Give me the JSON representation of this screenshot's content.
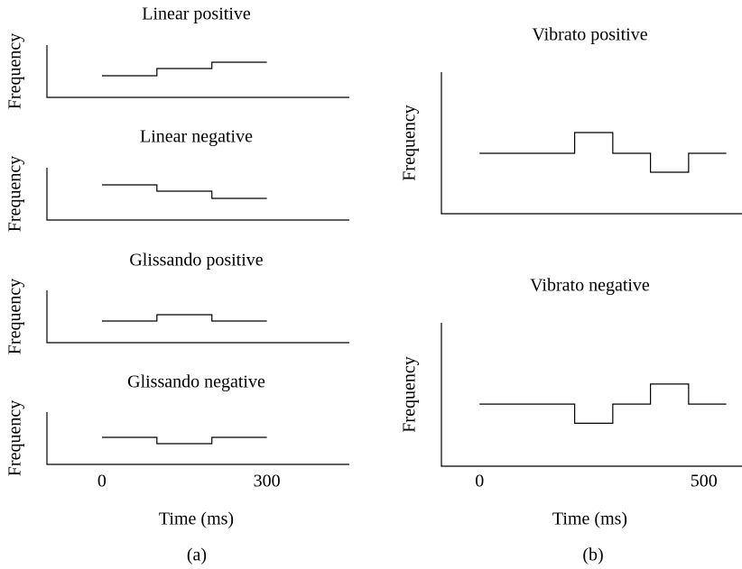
{
  "chart_data": [
    {
      "type": "line",
      "title": "Linear positive",
      "ylabel": "Frequency",
      "color": "#000000",
      "xlim": [
        -100,
        450
      ],
      "ylim": [
        0,
        58
      ],
      "x": [
        0,
        100,
        100,
        200,
        200,
        300
      ],
      "values": [
        24,
        24,
        32,
        32,
        39,
        39
      ]
    },
    {
      "type": "line",
      "title": "Linear negative",
      "ylabel": "Frequency",
      "color": "#000000",
      "xlim": [
        -100,
        450
      ],
      "ylim": [
        0,
        58
      ],
      "x": [
        0,
        100,
        100,
        200,
        200,
        300
      ],
      "values": [
        39,
        39,
        32,
        32,
        24,
        24
      ]
    },
    {
      "type": "line",
      "title": "Glissando positive",
      "ylabel": "Frequency",
      "color": "#000000",
      "xlim": [
        -100,
        450
      ],
      "ylim": [
        0,
        58
      ],
      "x": [
        0,
        100,
        100,
        200,
        200,
        300
      ],
      "values": [
        24,
        24,
        31,
        31,
        24,
        24
      ]
    },
    {
      "type": "line",
      "title": "Glissando negative",
      "ylabel": "Frequency",
      "color": "#000000",
      "xlim": [
        -100,
        450
      ],
      "ylim": [
        0,
        58
      ],
      "x": [
        0,
        100,
        100,
        200,
        200,
        300
      ],
      "values": [
        30,
        30,
        23,
        23,
        30,
        30
      ],
      "xticks": [
        0,
        300
      ],
      "xlabel": "Time (ms)"
    },
    {
      "type": "line",
      "title": "Vibrato positive",
      "ylabel": "Frequency",
      "color": "#000000",
      "xlim": [
        -85,
        585
      ],
      "ylim": [
        0,
        157
      ],
      "x": [
        0,
        212,
        212,
        297,
        297,
        381,
        381,
        466,
        466,
        550
      ],
      "values": [
        67,
        67,
        90,
        90,
        67,
        67,
        46,
        46,
        67,
        67
      ]
    },
    {
      "type": "line",
      "title": "Vibrato negative",
      "ylabel": "Frequency",
      "color": "#000000",
      "xlim": [
        -85,
        585
      ],
      "ylim": [
        0,
        157
      ],
      "x": [
        0,
        212,
        212,
        297,
        297,
        381,
        381,
        466,
        466,
        550
      ],
      "values": [
        68,
        68,
        47,
        47,
        68,
        68,
        90,
        90,
        68,
        68
      ],
      "xticks": [
        0,
        500
      ],
      "xlabel": "Time (ms)"
    }
  ],
  "captions": [
    "(a)",
    "(b)"
  ]
}
